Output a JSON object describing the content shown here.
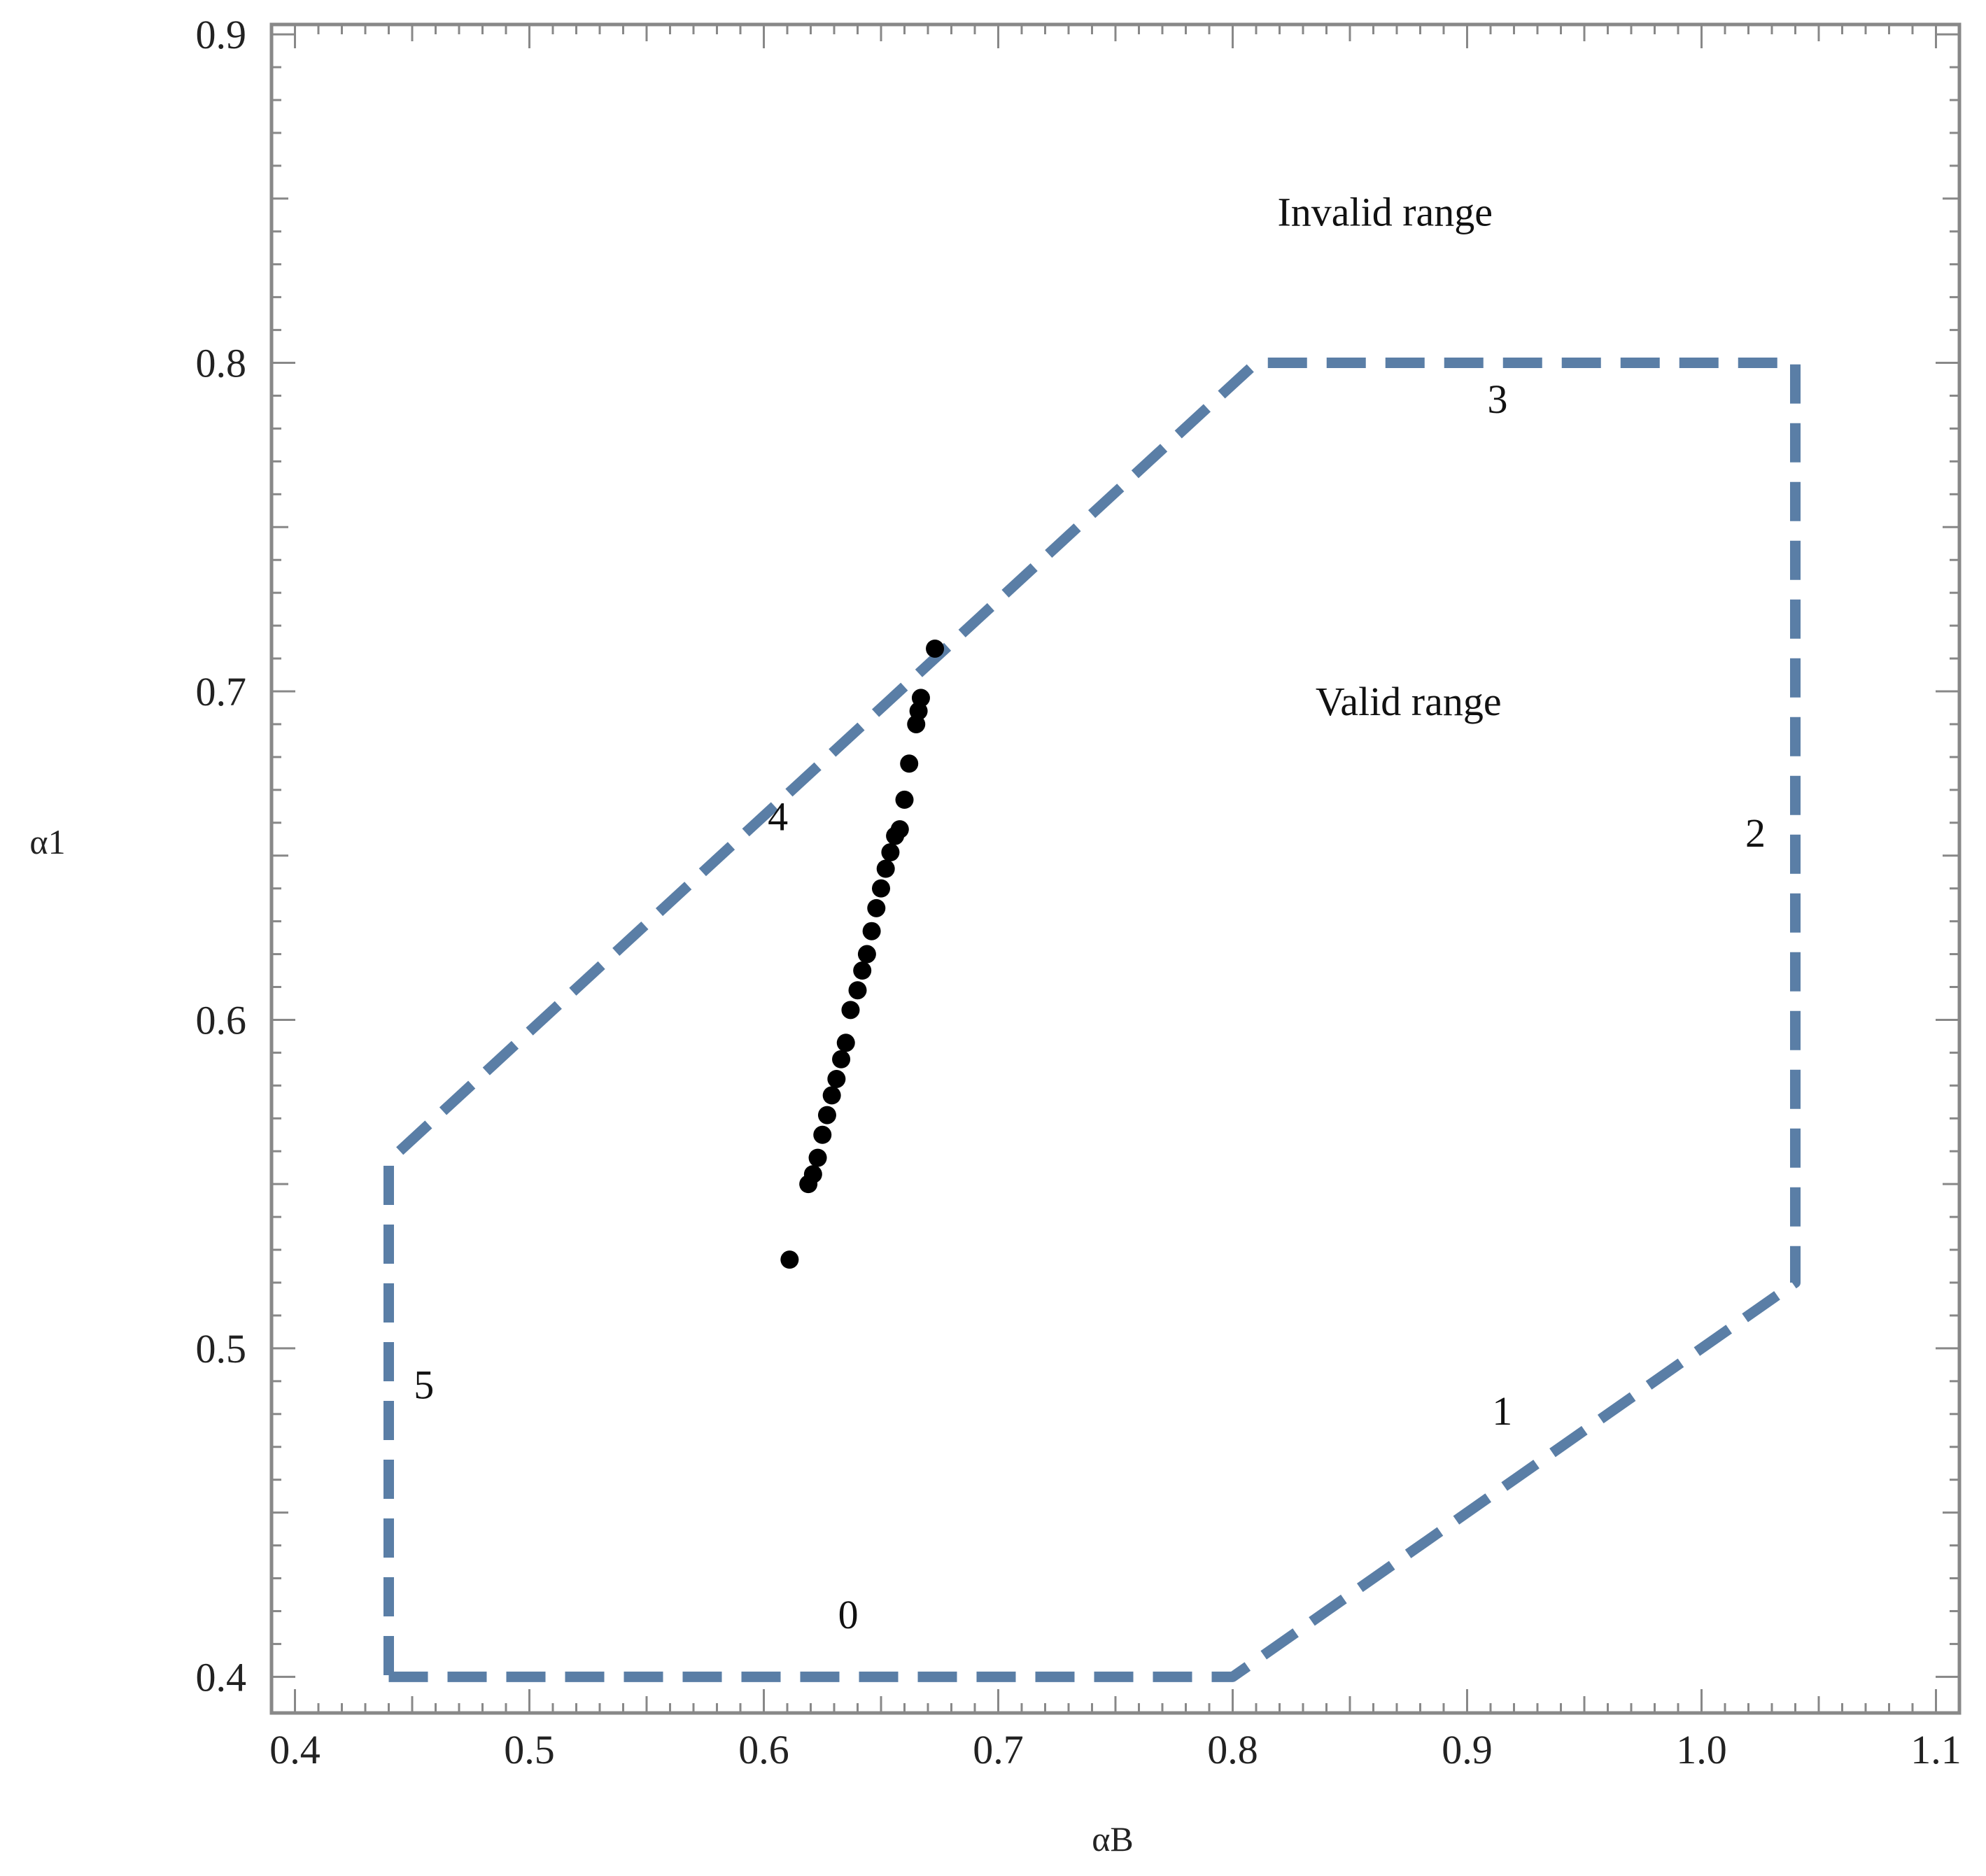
{
  "chart_data": {
    "type": "scatter",
    "xlabel": "αB",
    "ylabel": "α1",
    "xlim": [
      0.39,
      1.11
    ],
    "ylim": [
      0.389,
      0.903
    ],
    "x_ticks": [
      0.4,
      0.5,
      0.6,
      0.7,
      0.8,
      0.9,
      1.0,
      1.1
    ],
    "x_tick_labels": [
      "0.4",
      "0.5",
      "0.6",
      "0.7",
      "0.8",
      "0.9",
      "1.0",
      "1.1"
    ],
    "y_ticks": [
      0.4,
      0.5,
      0.6,
      0.7,
      0.8,
      0.9
    ],
    "y_tick_labels": [
      "0.4",
      "0.5",
      "0.6",
      "0.7",
      "0.8",
      "0.9"
    ],
    "grid": false,
    "colors": {
      "boundary": "#5a7ea6",
      "points": "#000000",
      "frame": "#888888"
    },
    "boundary": {
      "style": "dashed",
      "vertices": [
        {
          "x": 0.44,
          "y": 0.4
        },
        {
          "x": 0.8,
          "y": 0.4
        },
        {
          "x": 1.04,
          "y": 0.52
        },
        {
          "x": 1.04,
          "y": 0.8
        },
        {
          "x": 0.81,
          "y": 0.8
        },
        {
          "x": 0.44,
          "y": 0.557
        },
        {
          "x": 0.44,
          "y": 0.4
        }
      ]
    },
    "points": [
      {
        "x": 0.611,
        "y": 0.527
      },
      {
        "x": 0.619,
        "y": 0.55
      },
      {
        "x": 0.621,
        "y": 0.553
      },
      {
        "x": 0.623,
        "y": 0.558
      },
      {
        "x": 0.625,
        "y": 0.565
      },
      {
        "x": 0.627,
        "y": 0.571
      },
      {
        "x": 0.629,
        "y": 0.577
      },
      {
        "x": 0.631,
        "y": 0.582
      },
      {
        "x": 0.633,
        "y": 0.588
      },
      {
        "x": 0.635,
        "y": 0.593
      },
      {
        "x": 0.637,
        "y": 0.603
      },
      {
        "x": 0.64,
        "y": 0.609
      },
      {
        "x": 0.642,
        "y": 0.615
      },
      {
        "x": 0.644,
        "y": 0.62
      },
      {
        "x": 0.646,
        "y": 0.627
      },
      {
        "x": 0.648,
        "y": 0.634
      },
      {
        "x": 0.65,
        "y": 0.64
      },
      {
        "x": 0.652,
        "y": 0.646
      },
      {
        "x": 0.654,
        "y": 0.651
      },
      {
        "x": 0.656,
        "y": 0.656
      },
      {
        "x": 0.658,
        "y": 0.658
      },
      {
        "x": 0.66,
        "y": 0.667
      },
      {
        "x": 0.662,
        "y": 0.678
      },
      {
        "x": 0.665,
        "y": 0.69
      },
      {
        "x": 0.666,
        "y": 0.694
      },
      {
        "x": 0.667,
        "y": 0.698
      },
      {
        "x": 0.673,
        "y": 0.713
      }
    ],
    "annotations": [
      {
        "text": "Invalid range",
        "x": 0.865,
        "y": 0.846
      },
      {
        "text": "Valid range",
        "x": 0.875,
        "y": 0.697
      },
      {
        "text": "0",
        "x": 0.636,
        "y": 0.419
      },
      {
        "text": "1",
        "x": 0.915,
        "y": 0.481
      },
      {
        "text": "2",
        "x": 1.023,
        "y": 0.657
      },
      {
        "text": "3",
        "x": 0.913,
        "y": 0.789
      },
      {
        "text": "4",
        "x": 0.606,
        "y": 0.662
      },
      {
        "text": "5",
        "x": 0.455,
        "y": 0.489
      }
    ]
  }
}
